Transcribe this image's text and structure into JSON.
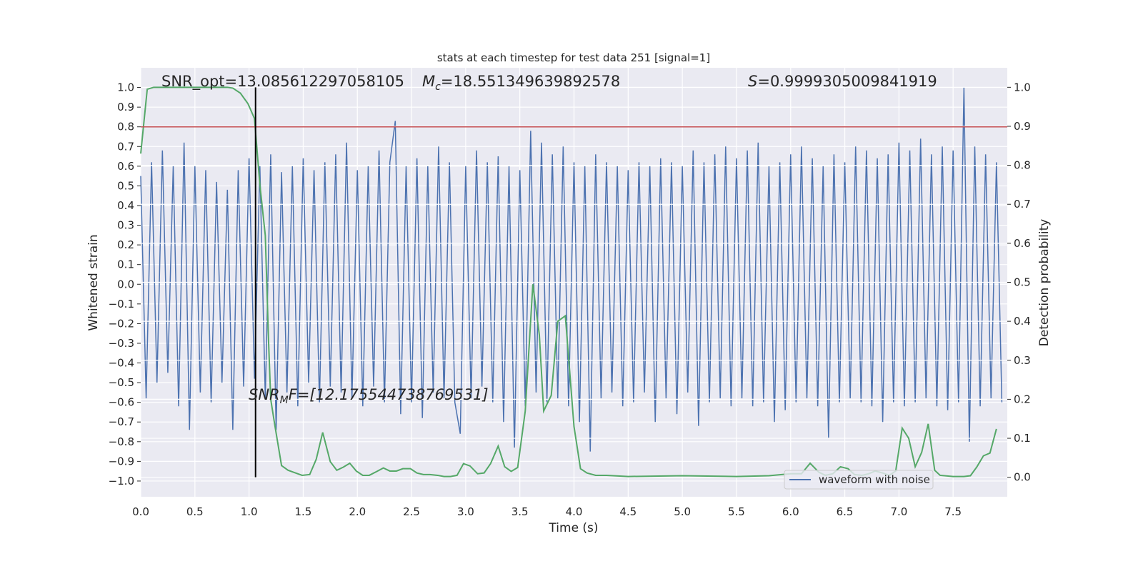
{
  "chart_data": {
    "type": "line",
    "title": "stats at each timestep for test data 251 [signal=1]",
    "xlabel": "Time (s)",
    "ylabel": "Whitened strain",
    "y2label": "Detection probability",
    "xlim": [
      0,
      8
    ],
    "ylim": [
      -1.08,
      1.1
    ],
    "y2lim": [
      -0.05,
      1.05
    ],
    "xticks": [
      {
        "value": 0,
        "label": "0.0"
      },
      0.5,
      {
        "value": 1,
        "label": "1.0"
      },
      1.5,
      {
        "value": 2,
        "label": "2.0"
      },
      2.5,
      {
        "value": 3,
        "label": "3.0"
      },
      3.5,
      {
        "value": 4,
        "label": "4.0"
      },
      4.5,
      {
        "value": 5,
        "label": "5.0"
      },
      5.5,
      {
        "value": 6,
        "label": "6.0"
      },
      6.5,
      {
        "value": 7,
        "label": "7.0"
      },
      7.5
    ],
    "yticks": [
      {
        "value": -1,
        "label": "−1.0"
      },
      {
        "value": -0.9,
        "label": "−0.9"
      },
      {
        "value": -0.8,
        "label": "−0.8"
      },
      {
        "value": -0.7,
        "label": "−0.7"
      },
      {
        "value": -0.6,
        "label": "−0.6"
      },
      {
        "value": -0.5,
        "label": "−0.5"
      },
      {
        "value": -0.4,
        "label": "−0.4"
      },
      {
        "value": -0.3,
        "label": "−0.3"
      },
      {
        "value": -0.2,
        "label": "−0.2"
      },
      {
        "value": -0.1,
        "label": "−0.1"
      },
      {
        "value": 0,
        "label": "0.0"
      },
      0.1,
      0.2,
      0.3,
      0.4,
      0.5,
      0.6,
      0.7,
      0.8,
      0.9,
      {
        "value": 1,
        "label": "1.0"
      }
    ],
    "y2ticks": [
      {
        "value": 0,
        "label": "0.0"
      },
      0.1,
      0.2,
      0.3,
      0.4,
      0.5,
      0.6,
      0.7,
      0.8,
      0.9,
      {
        "value": 1,
        "label": "1.0"
      }
    ],
    "grid": true,
    "legend": "lower right",
    "series": [
      {
        "name": "waveform with noise",
        "color": "#4c72b0",
        "x": [
          0,
          0.05,
          0.1,
          0.15,
          0.2,
          0.25,
          0.3,
          0.35,
          0.4,
          0.45,
          0.5,
          0.55,
          0.6,
          0.65,
          0.7,
          0.75,
          0.8,
          0.85,
          0.9,
          0.95,
          1,
          1.05,
          1.1,
          1.15,
          1.2,
          1.25,
          1.3,
          1.35,
          1.4,
          1.45,
          1.5,
          1.55,
          1.6,
          1.65,
          1.7,
          1.75,
          1.8,
          1.85,
          1.9,
          1.95,
          2,
          2.05,
          2.1,
          2.15,
          2.2,
          2.25,
          2.3,
          2.35,
          2.4,
          2.45,
          2.5,
          2.55,
          2.6,
          2.65,
          2.7,
          2.75,
          2.8,
          2.85,
          2.9,
          2.95,
          3,
          3.05,
          3.1,
          3.15,
          3.2,
          3.25,
          3.3,
          3.35,
          3.4,
          3.45,
          3.5,
          3.55,
          3.6,
          3.65,
          3.7,
          3.75,
          3.8,
          3.85,
          3.9,
          3.95,
          4,
          4.05,
          4.1,
          4.15,
          4.2,
          4.25,
          4.3,
          4.35,
          4.4,
          4.45,
          4.5,
          4.55,
          4.6,
          4.65,
          4.7,
          4.75,
          4.8,
          4.85,
          4.9,
          4.95,
          5,
          5.05,
          5.1,
          5.15,
          5.2,
          5.25,
          5.3,
          5.35,
          5.4,
          5.45,
          5.5,
          5.55,
          5.6,
          5.65,
          5.7,
          5.75,
          5.8,
          5.85,
          5.9,
          5.95,
          6,
          6.05,
          6.1,
          6.15,
          6.2,
          6.25,
          6.3,
          6.35,
          6.4,
          6.45,
          6.5,
          6.55,
          6.6,
          6.65,
          6.7,
          6.75,
          6.8,
          6.85,
          6.9,
          6.95,
          7,
          7.05,
          7.1,
          7.15,
          7.2,
          7.25,
          7.3,
          7.35,
          7.4,
          7.45,
          7.5,
          7.55,
          7.6,
          7.65,
          7.7,
          7.75,
          7.8,
          7.85,
          7.9,
          7.95
        ],
        "values": [
          0.55,
          -0.58,
          0.62,
          -0.5,
          0.68,
          -0.45,
          0.6,
          -0.62,
          0.72,
          -0.74,
          0.6,
          -0.55,
          0.58,
          -0.6,
          0.52,
          -0.5,
          0.48,
          -0.74,
          0.58,
          -0.52,
          0.64,
          -0.48,
          0.6,
          -0.58,
          0.66,
          -0.74,
          0.57,
          -0.55,
          0.6,
          -0.62,
          0.64,
          -0.5,
          0.58,
          -0.6,
          0.62,
          -0.52,
          0.66,
          -0.55,
          0.72,
          -0.58,
          0.58,
          -0.62,
          0.6,
          -0.52,
          0.68,
          -0.6,
          0.62,
          0.83,
          -0.66,
          0.6,
          -0.6,
          0.64,
          -0.68,
          0.6,
          -0.55,
          0.7,
          -0.58,
          0.62,
          -0.6,
          -0.76,
          0.6,
          -0.58,
          0.68,
          -0.52,
          0.62,
          -0.6,
          0.65,
          -0.7,
          0.6,
          -0.83,
          0.58,
          -0.62,
          0.78,
          -0.55,
          0.72,
          -0.6,
          0.66,
          -0.58,
          0.7,
          -0.62,
          0.62,
          -0.7,
          0.6,
          -0.85,
          0.66,
          -0.58,
          0.62,
          -0.55,
          0.6,
          -0.62,
          0.58,
          -0.6,
          0.62,
          -0.55,
          0.6,
          -0.7,
          0.64,
          -0.58,
          0.62,
          -0.66,
          0.6,
          -0.55,
          0.68,
          -0.72,
          0.62,
          -0.6,
          0.66,
          -0.58,
          0.7,
          -0.62,
          0.64,
          -0.58,
          0.68,
          -0.62,
          0.72,
          -0.6,
          0.6,
          -0.7,
          0.62,
          -0.64,
          0.66,
          -0.6,
          0.7,
          -0.58,
          0.64,
          -0.62,
          0.6,
          -0.78,
          0.66,
          -0.6,
          0.62,
          -0.58,
          0.7,
          -0.6,
          0.68,
          -0.62,
          0.64,
          -0.7,
          0.66,
          -0.6,
          0.72,
          -0.62,
          0.68,
          -0.6,
          0.74,
          -0.58,
          0.66,
          -0.62,
          0.7,
          -0.64,
          0.68,
          -0.6,
          1.0,
          -0.8,
          0.7,
          -0.62,
          0.66,
          -0.58,
          0.62,
          -0.6
        ]
      },
      {
        "color": "#55a868",
        "axis": "y2",
        "x": [
          0,
          0.06,
          0.12,
          0.2,
          0.4,
          0.6,
          0.8,
          0.85,
          0.92,
          0.99,
          1.05,
          1.1,
          1.15,
          1.18,
          1.2,
          1.24,
          1.3,
          1.36,
          1.43,
          1.49,
          1.56,
          1.62,
          1.68,
          1.75,
          1.81,
          1.87,
          1.93,
          1.99,
          2.05,
          2.11,
          2.18,
          2.24,
          2.3,
          2.36,
          2.42,
          2.49,
          2.55,
          2.61,
          2.67,
          2.74,
          2.8,
          2.86,
          2.92,
          2.98,
          3.04,
          3.11,
          3.17,
          3.23,
          3.3,
          3.36,
          3.42,
          3.48,
          3.55,
          3.62,
          3.68,
          3.72,
          3.79,
          3.85,
          3.92,
          4,
          4.06,
          4.12,
          4.2,
          4.3,
          4.5,
          5,
          5.5,
          5.8,
          6,
          6.1,
          6.18,
          6.26,
          6.32,
          6.39,
          6.46,
          6.53,
          6.59,
          6.66,
          6.72,
          6.78,
          6.85,
          6.91,
          6.97,
          7.03,
          7.09,
          7.15,
          7.21,
          7.27,
          7.33,
          7.38,
          7.5,
          7.6,
          7.66,
          7.72,
          7.78,
          7.84,
          7.9
        ],
        "values": [
          0.83,
          0.995,
          1.0,
          1.0,
          1.0,
          1.0,
          1.0,
          0.998,
          0.985,
          0.958,
          0.92,
          0.75,
          0.62,
          0.35,
          0.2,
          0.13,
          0.03,
          0.018,
          0.011,
          0.005,
          0.007,
          0.046,
          0.115,
          0.04,
          0.018,
          0.026,
          0.036,
          0.016,
          0.005,
          0.005,
          0.015,
          0.024,
          0.016,
          0.016,
          0.022,
          0.022,
          0.011,
          0.007,
          0.007,
          0.005,
          0.002,
          0.002,
          0.005,
          0.035,
          0.029,
          0.009,
          0.011,
          0.035,
          0.08,
          0.027,
          0.015,
          0.025,
          0.17,
          0.495,
          0.365,
          0.17,
          0.21,
          0.4,
          0.414,
          0.13,
          0.022,
          0.011,
          0.005,
          0.005,
          0.002,
          0.004,
          0.002,
          0.004,
          0.009,
          0.009,
          0.036,
          0.013,
          0.005,
          0.009,
          0.027,
          0.022,
          0.007,
          0.005,
          0.009,
          0.016,
          0.011,
          0.005,
          0.016,
          0.126,
          0.1,
          0.027,
          0.064,
          0.137,
          0.018,
          0.005,
          0.002,
          0.002,
          0.004,
          0.027,
          0.055,
          0.062,
          0.124
        ]
      }
    ],
    "hline": {
      "y": 0.8,
      "color": "#c44e52"
    },
    "vline": {
      "x": 1.06,
      "y2": [
        0,
        1
      ],
      "color": "#000000"
    },
    "annotations": {
      "snr_opt": "SNR_opt=13.085612297058105",
      "mc": {
        "symbol": "M",
        "subscript": "c",
        "text": "=18.551349639892578"
      },
      "s": {
        "symbol": "S",
        "text": "=0.9999305009841919"
      },
      "snr_mf": {
        "symbol": "SNR",
        "subscript": "M",
        "text": "F=[12.175544738769531]"
      }
    }
  }
}
